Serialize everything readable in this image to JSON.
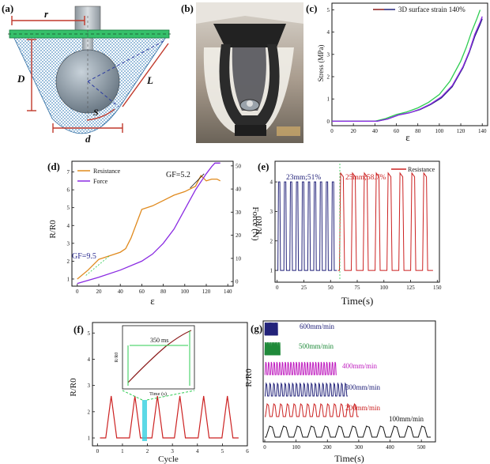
{
  "figure": {
    "panel_labels": [
      "(a)",
      "(b)",
      "(c)",
      "(d)",
      "(e)",
      "(f)",
      "(g)"
    ],
    "schematic_labels": {
      "r": "r",
      "D": "D",
      "L": "L",
      "S": "S",
      "d": "d"
    },
    "colors": {
      "green": "#2ecc52",
      "navy": "#23237a",
      "red": "#cc2222",
      "purple": "#8a2be2",
      "orange": "#e08a1e",
      "blue": "#2a2ad0",
      "magenta": "#c020c0",
      "cyan": "#33d0e0",
      "darkred": "#8b1a1a"
    }
  },
  "chart_data": [
    {
      "panel": "(c)",
      "type": "line",
      "xlabel": "ε",
      "ylabel": "Stress (MPa)",
      "xlim": [
        0,
        145
      ],
      "ylim": [
        -0.2,
        5.3
      ],
      "xticks": [
        "0",
        "20",
        "40",
        "60",
        "80",
        "100",
        "120",
        "140"
      ],
      "yticks": [
        "0",
        "1",
        "2",
        "3",
        "4",
        "5"
      ],
      "legend": "3D surface strain 140%",
      "series": [
        {
          "name": "green",
          "x": [
            0,
            40,
            50,
            60,
            70,
            80,
            90,
            100,
            110,
            120,
            125,
            130,
            135,
            138
          ],
          "y": [
            0,
            0,
            0.12,
            0.3,
            0.42,
            0.6,
            0.85,
            1.2,
            1.8,
            2.7,
            3.3,
            4.0,
            4.6,
            5.0
          ]
        },
        {
          "name": "navy",
          "x": [
            0,
            42,
            52,
            62,
            72,
            82,
            92,
            102,
            112,
            122,
            128,
            133,
            138,
            140
          ],
          "y": [
            0,
            0,
            0.1,
            0.28,
            0.38,
            0.52,
            0.75,
            1.05,
            1.55,
            2.4,
            3.1,
            3.8,
            4.35,
            4.6
          ]
        },
        {
          "name": "purple",
          "x": [
            0,
            42,
            52,
            62,
            72,
            82,
            92,
            102,
            112,
            122,
            128,
            133,
            138,
            140
          ],
          "y": [
            0,
            0,
            0.1,
            0.28,
            0.38,
            0.54,
            0.78,
            1.1,
            1.6,
            2.45,
            3.15,
            3.9,
            4.45,
            4.7
          ]
        }
      ]
    },
    {
      "panel": "(d)",
      "type": "line",
      "xlabel": "ε",
      "ylabel_left": "R/R0",
      "ylabel_right": "Force (N)",
      "xlim": [
        -5,
        145
      ],
      "ylim_left": [
        0.6,
        7.6
      ],
      "ylim_right": [
        -2,
        52
      ],
      "xticks": [
        "0",
        "20",
        "40",
        "60",
        "80",
        "100",
        "120",
        "140"
      ],
      "yticks_left": [
        "1",
        "2",
        "3",
        "4",
        "5",
        "6",
        "7"
      ],
      "yticks_right": [
        "0",
        "10",
        "20",
        "30",
        "40",
        "50"
      ],
      "legend": [
        "Resistance",
        "Force"
      ],
      "annotations": [
        "GF=9.5",
        "GF=5.2"
      ],
      "series": [
        {
          "name": "Resistance",
          "axis": "left",
          "x": [
            0,
            10,
            20,
            30,
            40,
            45,
            50,
            55,
            60,
            70,
            80,
            90,
            100,
            110,
            115,
            120,
            125,
            130,
            133
          ],
          "y": [
            1.0,
            1.5,
            2.1,
            2.3,
            2.5,
            2.7,
            3.3,
            4.1,
            4.9,
            5.1,
            5.4,
            5.7,
            5.9,
            6.2,
            6.8,
            6.5,
            6.6,
            6.6,
            6.5
          ]
        },
        {
          "name": "Force",
          "axis": "left",
          "x": [
            0,
            20,
            40,
            60,
            70,
            80,
            90,
            100,
            110,
            120,
            125,
            128,
            131,
            133
          ],
          "y": [
            0.75,
            1.1,
            1.5,
            2.0,
            2.4,
            3.0,
            3.8,
            4.9,
            6.0,
            6.9,
            7.3,
            7.5,
            7.5,
            7.5
          ]
        }
      ]
    },
    {
      "panel": "(e)",
      "type": "line",
      "xlabel": "Time(s)",
      "ylabel": "R/R0",
      "xlim": [
        -2,
        152
      ],
      "ylim": [
        0.6,
        4.7
      ],
      "xticks": [
        "0",
        "25",
        "50",
        "75",
        "100",
        "125",
        "150"
      ],
      "yticks": [
        "1",
        "2",
        "3",
        "4"
      ],
      "legend": "Resistance",
      "annotations": [
        "23mm;51%",
        "25mm;58.7%"
      ],
      "series": [
        {
          "name": "23mm;51%",
          "t_start": 0,
          "t_end": 56,
          "cycles": 10,
          "peak": 4.0,
          "base": 1.0
        },
        {
          "name": "25mm;58.7%",
          "t_start": 57,
          "t_end": 146,
          "cycles": 8,
          "peak": 4.3,
          "base": 1.0
        }
      ]
    },
    {
      "panel": "(f)",
      "type": "line",
      "xlabel": "Cycle",
      "ylabel": "R/R0",
      "xlim": [
        -0.2,
        6.0
      ],
      "ylim": [
        0.7,
        5.4
      ],
      "xticks": [
        "0",
        "1",
        "2",
        "3",
        "4",
        "5",
        "6"
      ],
      "yticks": [
        "1",
        "2",
        "3",
        "4",
        "5"
      ],
      "series": [
        {
          "name": "Resistance",
          "peaks": [
            0.55,
            1.5,
            2.4,
            3.3,
            4.25,
            5.2
          ],
          "peak": 2.6,
          "base": 1.0
        }
      ],
      "inset": {
        "xlabel": "Time (s)",
        "ylabel": "R/R0",
        "annotation": "350 ms"
      }
    },
    {
      "panel": "(g)",
      "type": "line",
      "xlabel": "Time(s)",
      "ylabel": "R/R0",
      "xlim": [
        -5,
        545
      ],
      "xticks": [
        "0",
        "100",
        "200",
        "300",
        "400",
        "500"
      ],
      "series": [
        {
          "name": "600mm/min",
          "t_end": 42,
          "cycles": 14
        },
        {
          "name": "500mm/min",
          "t_end": 50,
          "cycles": 14
        },
        {
          "name": "400mm/min",
          "t_end": 230,
          "cycles": 26
        },
        {
          "name": "300mm/min",
          "t_end": 265,
          "cycles": 22
        },
        {
          "name": "200mm/min",
          "t_end": 300,
          "cycles": 14
        },
        {
          "name": "100mm/min",
          "t_end": 530,
          "cycles": 12
        }
      ]
    }
  ]
}
